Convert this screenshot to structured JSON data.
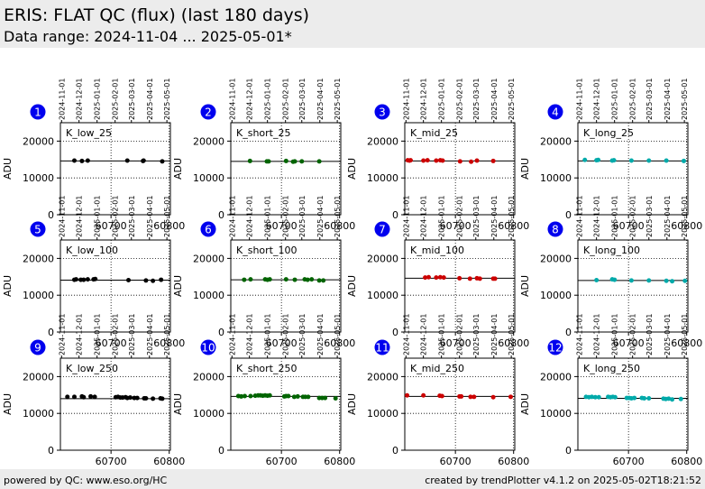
{
  "header": {
    "title": "ERIS: FLAT QC (flux) (last 180 days)",
    "subtitle": "Data range: 2024-11-04 ... 2025-05-01*"
  },
  "footer": {
    "left": "powered by QC: www.eso.org/HC",
    "right": "created by trendPlotter v4.1.2 on 2025-05-02T18:21:52"
  },
  "colors": {
    "badge": "#0000ee",
    "K_low": "#000000",
    "K_short": "#006400",
    "K_mid": "#cc0000",
    "K_long": "#00aaaa"
  },
  "chart_data": [
    {
      "type": "scatter",
      "panel": "1",
      "label": "K_low_25",
      "ylabel": "ADU",
      "color_key": "K_low",
      "xlim": [
        60613,
        60802
      ],
      "ylim": [
        0,
        25000
      ],
      "yticks": [
        0,
        10000,
        20000
      ],
      "xticks": [
        60700,
        60800
      ],
      "ref": 14600,
      "x": [
        60637,
        60650,
        60660,
        60728,
        60755,
        60756,
        60788
      ],
      "y": [
        14700,
        14600,
        14700,
        14700,
        14600,
        14700,
        14500
      ]
    },
    {
      "type": "scatter",
      "panel": "2",
      "label": "K_short_25",
      "ylabel": "ADU",
      "color_key": "K_short",
      "xlim": [
        60613,
        60802
      ],
      "ylim": [
        0,
        25000
      ],
      "yticks": [
        0,
        10000,
        20000
      ],
      "xticks": [
        60700,
        60800
      ],
      "ref": 14500,
      "x": [
        60646,
        60675,
        60678,
        60708,
        60720,
        60723,
        60735,
        60765
      ],
      "y": [
        14600,
        14500,
        14500,
        14600,
        14400,
        14500,
        14500,
        14500
      ]
    },
    {
      "type": "scatter",
      "panel": "3",
      "label": "K_mid_25",
      "ylabel": "ADU",
      "color_key": "K_mid",
      "xlim": [
        60613,
        60802
      ],
      "ylim": [
        0,
        25000
      ],
      "yticks": [
        0,
        10000,
        20000
      ],
      "xticks": [
        60700,
        60800
      ],
      "ref": 14600,
      "x": [
        60618,
        60621,
        60623,
        60645,
        60652,
        60667,
        60674,
        60678,
        60708,
        60727,
        60737,
        60765
      ],
      "y": [
        14800,
        14700,
        14800,
        14700,
        14800,
        14700,
        14800,
        14700,
        14500,
        14400,
        14700,
        14600
      ]
    },
    {
      "type": "scatter",
      "panel": "4",
      "label": "K_long_25",
      "ylabel": "ADU",
      "color_key": "K_long",
      "xlim": [
        60613,
        60802
      ],
      "ylim": [
        0,
        25000
      ],
      "yticks": [
        0,
        10000,
        20000
      ],
      "xticks": [
        60700,
        60800
      ],
      "ref": 14600,
      "x": [
        60625,
        60645,
        60648,
        60672,
        60675,
        60705,
        60735,
        60765,
        60795
      ],
      "y": [
        14900,
        14800,
        14900,
        14700,
        14800,
        14700,
        14700,
        14700,
        14600
      ]
    },
    {
      "type": "scatter",
      "panel": "5",
      "label": "K_low_100",
      "ylabel": "ADU",
      "color_key": "K_low",
      "xlim": [
        60613,
        60802
      ],
      "ylim": [
        0,
        25000
      ],
      "yticks": [
        0,
        10000,
        20000
      ],
      "xticks": [
        60700,
        60800
      ],
      "ref": 14100,
      "x": [
        60637,
        60640,
        60648,
        60653,
        60660,
        60670,
        60673,
        60730,
        60760,
        60772,
        60786
      ],
      "y": [
        14200,
        14300,
        14200,
        14200,
        14300,
        14300,
        14400,
        14100,
        14000,
        13900,
        14200
      ]
    },
    {
      "type": "scatter",
      "panel": "6",
      "label": "K_short_100",
      "ylabel": "ADU",
      "color_key": "K_short",
      "xlim": [
        60613,
        60802
      ],
      "ylim": [
        0,
        25000
      ],
      "yticks": [
        0,
        10000,
        20000
      ],
      "xticks": [
        60700,
        60800
      ],
      "ref": 14200,
      "x": [
        60636,
        60647,
        60672,
        60676,
        60680,
        60708,
        60723,
        60740,
        60745,
        60752,
        60765,
        60772
      ],
      "y": [
        14200,
        14300,
        14300,
        14200,
        14300,
        14300,
        14200,
        14300,
        14200,
        14300,
        14000,
        14000
      ]
    },
    {
      "type": "scatter",
      "panel": "7",
      "label": "K_mid_100",
      "ylabel": "ADU",
      "color_key": "K_mid",
      "xlim": [
        60613,
        60802
      ],
      "ylim": [
        0,
        25000
      ],
      "yticks": [
        0,
        10000,
        20000
      ],
      "xticks": [
        60700,
        60800
      ],
      "ref": 14600,
      "x": [
        60648,
        60654,
        60667,
        60674,
        60680,
        60707,
        60725,
        60737,
        60742,
        60765,
        60768
      ],
      "y": [
        14800,
        14900,
        14800,
        14900,
        14800,
        14600,
        14500,
        14600,
        14500,
        14500,
        14500
      ]
    },
    {
      "type": "scatter",
      "panel": "8",
      "label": "K_long_100",
      "ylabel": "ADU",
      "color_key": "K_long",
      "xlim": [
        60613,
        60802
      ],
      "ylim": [
        0,
        25000
      ],
      "yticks": [
        0,
        10000,
        20000
      ],
      "xticks": [
        60700,
        60800
      ],
      "ref": 14000,
      "x": [
        60645,
        60672,
        60676,
        60705,
        60735,
        60765,
        60775,
        60797
      ],
      "y": [
        14100,
        14300,
        14200,
        14000,
        14000,
        13900,
        13800,
        13900
      ]
    },
    {
      "type": "scatter",
      "panel": "9",
      "label": "K_low_250",
      "ylabel": "ADU",
      "color_key": "K_low",
      "xlim": [
        60613,
        60802
      ],
      "ylim": [
        0,
        25000
      ],
      "yticks": [
        0,
        10000,
        20000
      ],
      "xticks": [
        60700,
        60800
      ],
      "ref": 14000,
      "x": [
        60625,
        60637,
        60650,
        60653,
        60665,
        60672,
        60708,
        60712,
        60716,
        60720,
        60725,
        60728,
        60733,
        60740,
        60745,
        60757,
        60760,
        60772,
        60785,
        60788
      ],
      "y": [
        14500,
        14500,
        14600,
        14400,
        14600,
        14500,
        14400,
        14500,
        14300,
        14300,
        14400,
        14200,
        14300,
        14200,
        14200,
        14100,
        14100,
        14000,
        14100,
        14000
      ]
    },
    {
      "type": "scatter",
      "panel": "10",
      "label": "K_short_250",
      "ylabel": "ADU",
      "color_key": "K_short",
      "xlim": [
        60613,
        60802
      ],
      "ylim": [
        0,
        25000
      ],
      "yticks": [
        0,
        10000,
        20000
      ],
      "xticks": [
        60700,
        60800
      ],
      "ref": 14600,
      "x": [
        60626,
        60631,
        60637,
        60647,
        60655,
        60660,
        60664,
        60668,
        60672,
        60676,
        60680,
        60705,
        60708,
        60712,
        60722,
        60728,
        60737,
        60741,
        60746,
        60765,
        60770,
        60775,
        60793
      ],
      "y": [
        14700,
        14600,
        14700,
        14700,
        14800,
        14900,
        14900,
        14800,
        14900,
        14800,
        14900,
        14600,
        14700,
        14700,
        14500,
        14600,
        14500,
        14500,
        14500,
        14200,
        14200,
        14200,
        14100
      ]
    },
    {
      "type": "scatter",
      "panel": "11",
      "label": "K_mid_250",
      "ylabel": "ADU",
      "color_key": "K_mid",
      "xlim": [
        60613,
        60802
      ],
      "ylim": [
        0,
        25000
      ],
      "yticks": [
        0,
        10000,
        20000
      ],
      "xticks": [
        60700,
        60800
      ],
      "ref": 14600,
      "x": [
        60617,
        60645,
        60673,
        60677,
        60707,
        60710,
        60726,
        60732,
        60765,
        60795
      ],
      "y": [
        14900,
        14900,
        14800,
        14700,
        14600,
        14600,
        14500,
        14500,
        14400,
        14500
      ]
    },
    {
      "type": "scatter",
      "panel": "12",
      "label": "K_long_250",
      "ylabel": "ADU",
      "color_key": "K_long",
      "xlim": [
        60613,
        60802
      ],
      "ylim": [
        0,
        25000
      ],
      "yticks": [
        0,
        10000,
        20000
      ],
      "xticks": [
        60700,
        60800
      ],
      "ref": 14100,
      "x": [
        60627,
        60632,
        60637,
        60643,
        60649,
        60665,
        60669,
        60673,
        60677,
        60697,
        60701,
        60705,
        60710,
        60723,
        60727,
        60735,
        60760,
        60764,
        60769,
        60775,
        60790
      ],
      "y": [
        14500,
        14400,
        14500,
        14400,
        14400,
        14500,
        14400,
        14500,
        14400,
        14200,
        14200,
        14100,
        14200,
        14200,
        14100,
        14100,
        14000,
        13900,
        14000,
        13800,
        13900
      ]
    }
  ],
  "date_axis": {
    "labels": [
      "2024-11-01",
      "2024-12-01",
      "2025-01-01",
      "2025-02-01",
      "2025-03-01",
      "2025-04-01",
      "2025-05-01"
    ],
    "mjd": [
      60615,
      60645,
      60676,
      60707,
      60735,
      60766,
      60796
    ]
  }
}
